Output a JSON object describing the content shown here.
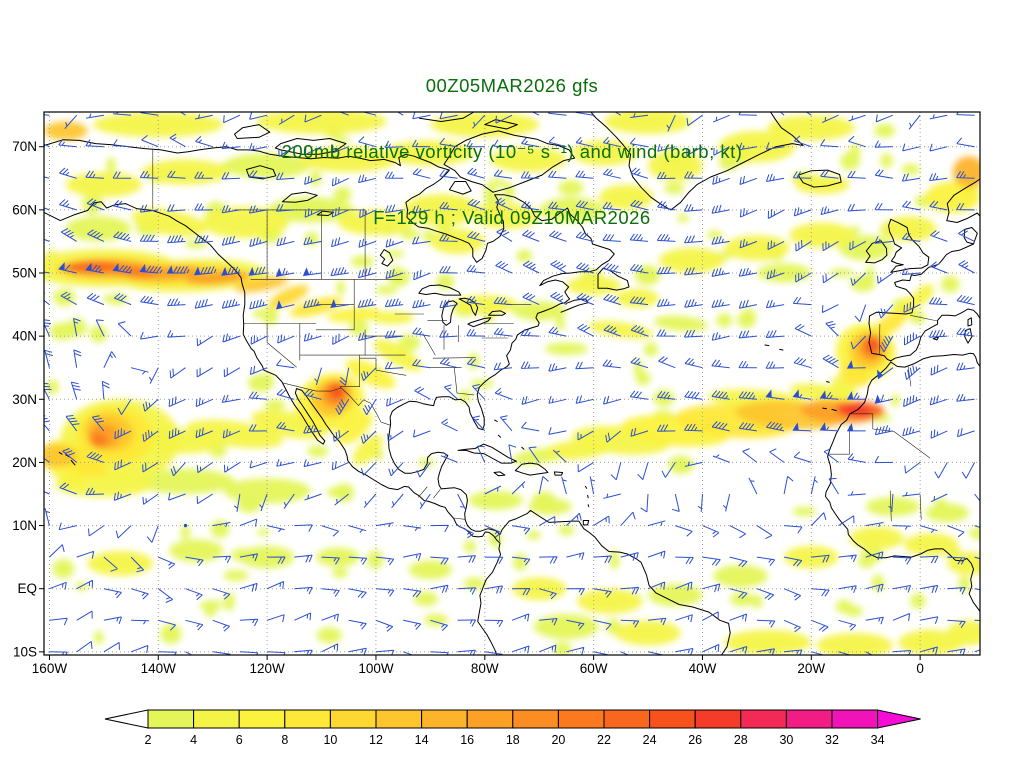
{
  "title": {
    "line1": "00Z05MAR2026 gfs",
    "line2": "200mb relative vorticity (10⁻⁵ s⁻¹) and wind (barb; kt)",
    "line3": "F=129 h ; Valid 09Z10MAR2026",
    "color": "#0a6e0a"
  },
  "chart_data": {
    "type": "heatmap",
    "subtype": "weather-map-vorticity-and-wind-barbs",
    "model": "gfs",
    "init_time": "00Z05MAR2026",
    "forecast_hour": "F=129 h",
    "valid_time": "09Z10MAR2026",
    "level": "200mb",
    "units": {
      "vorticity": "10⁻⁵ s⁻¹",
      "wind": "kt"
    },
    "lon_range": [
      -161,
      11
    ],
    "lat_range": [
      -10.5,
      75.5
    ],
    "x_ticks": [
      {
        "value": -160,
        "label": "160W"
      },
      {
        "value": -140,
        "label": "140W"
      },
      {
        "value": -120,
        "label": "120W"
      },
      {
        "value": -100,
        "label": "100W"
      },
      {
        "value": -80,
        "label": "80W"
      },
      {
        "value": -60,
        "label": "60W"
      },
      {
        "value": -40,
        "label": "40W"
      },
      {
        "value": -20,
        "label": "20W"
      },
      {
        "value": 0,
        "label": "0"
      }
    ],
    "y_ticks": [
      {
        "value": 70,
        "label": "70N"
      },
      {
        "value": 60,
        "label": "60N"
      },
      {
        "value": 50,
        "label": "50N"
      },
      {
        "value": 40,
        "label": "40N"
      },
      {
        "value": 30,
        "label": "30N"
      },
      {
        "value": 20,
        "label": "20N"
      },
      {
        "value": 10,
        "label": "10N"
      },
      {
        "value": 0,
        "label": "EQ"
      },
      {
        "value": -10,
        "label": "10S"
      }
    ],
    "grid_lons": [
      -160,
      -140,
      -120,
      -100,
      -80,
      -60,
      -40,
      -20,
      0
    ],
    "grid_lats": [
      70,
      60,
      50,
      40,
      30,
      20,
      10,
      0,
      -10
    ],
    "grid_on": true,
    "gridline_color": "#a0a0a0",
    "coast_color": "#000000",
    "barb_color": "#2b4fd0",
    "barb_grid_deg": 5,
    "colorbar": {
      "ticks": [
        2,
        4,
        6,
        8,
        10,
        12,
        14,
        16,
        18,
        20,
        22,
        24,
        26,
        28,
        30,
        32,
        34
      ],
      "segment_colors": [
        "#e4f55a",
        "#f4f448",
        "#fbf23e",
        "#fee838",
        "#fed832",
        "#fdc62e",
        "#fdb32a",
        "#fda026",
        "#fc8d23",
        "#fb7a20",
        "#f9661e",
        "#f7511c",
        "#f53c2a",
        "#f32a55",
        "#f11d85",
        "#f014b8"
      ],
      "under_color": "#ffffff",
      "over_color": "#f50cd6"
    },
    "flow": {
      "base_westerly": 8,
      "meander_amp": 13,
      "jets": [
        {
          "u": 85,
          "lat": 50,
          "latw": 4.5,
          "lon": -136,
          "lonw": 26
        },
        {
          "u": 30,
          "lat": 44,
          "latw": 5,
          "lon": -106,
          "lonw": 16
        },
        {
          "u": 22,
          "lat": 48,
          "latw": 9,
          "lon": -50,
          "lonw": 35
        },
        {
          "u": 50,
          "lat": 27.5,
          "latw": 4.2,
          "lon": -22,
          "lonw": 28
        },
        {
          "u": 28,
          "lat": 27,
          "latw": 5,
          "lon": -140,
          "lonw": 20
        },
        {
          "u": 18,
          "lat": 62,
          "latw": 10
        },
        {
          "u": 12,
          "lat": 38,
          "latw": 12
        },
        {
          "u": -20,
          "lat": 4,
          "latw": 8
        },
        {
          "u": -12,
          "lat": -9,
          "latw": 7
        },
        {
          "u": 25,
          "lat": 42,
          "latw": 6,
          "lon": 5,
          "lonw": 14
        }
      ],
      "vortices": [
        {
          "lon": -148.5,
          "lat": 24.5,
          "s": 28,
          "r": 6.5
        },
        {
          "lon": -9.5,
          "lat": 38,
          "s": 30,
          "r": 4.5
        },
        {
          "lon": -108,
          "lat": 30.5,
          "s": 22,
          "r": 4
        }
      ]
    },
    "noise": {
      "count": 150,
      "value": 2
    },
    "vorticity_patches": [
      [
        -150,
        50.8,
        14,
        3,
        0,
        5
      ],
      [
        -134,
        49.6,
        14,
        2.6,
        -2,
        5
      ],
      [
        -148,
        50.6,
        11,
        1.8,
        0,
        10
      ],
      [
        -136,
        49.8,
        10,
        1.6,
        -3,
        10
      ],
      [
        -150,
        50.8,
        8,
        1.3,
        0,
        16
      ],
      [
        -139,
        50,
        7,
        1.1,
        -3,
        16
      ],
      [
        -152,
        51,
        5,
        0.9,
        0,
        22
      ],
      [
        -144,
        50.2,
        4,
        0.8,
        -2,
        20
      ],
      [
        -129,
        49.2,
        6,
        1,
        -5,
        16
      ],
      [
        -121,
        48.2,
        5,
        1,
        -10,
        12
      ],
      [
        -116,
        46.3,
        4,
        1.2,
        -25,
        10
      ],
      [
        -111,
        44.6,
        5,
        1.2,
        -15,
        9
      ],
      [
        -104,
        43.4,
        5,
        1.1,
        -6,
        7
      ],
      [
        -97,
        42.9,
        4,
        1,
        0,
        4
      ],
      [
        -151,
        57,
        6,
        2,
        0,
        3
      ],
      [
        -138,
        58,
        7,
        2,
        10,
        4
      ],
      [
        -124,
        58,
        8,
        2.5,
        0,
        4
      ],
      [
        -112,
        60,
        8,
        2,
        0,
        3
      ],
      [
        -100,
        58,
        7,
        2,
        0,
        4
      ],
      [
        -88,
        60,
        7,
        2.5,
        0,
        4
      ],
      [
        -76,
        59,
        6,
        2,
        0,
        4
      ],
      [
        -64,
        60,
        6,
        2,
        0,
        3
      ],
      [
        -54,
        62,
        5,
        2,
        0,
        4
      ],
      [
        -150,
        64,
        7,
        2,
        0,
        4
      ],
      [
        -135,
        66,
        8,
        2,
        0,
        4
      ],
      [
        -120,
        67,
        8,
        2,
        0,
        3
      ],
      [
        -105,
        68,
        9,
        2,
        0,
        4
      ],
      [
        -90,
        69,
        8,
        2,
        0,
        4
      ],
      [
        -72,
        68,
        7,
        2,
        0,
        4
      ],
      [
        -58,
        69,
        6,
        2,
        0,
        4
      ],
      [
        -45,
        67,
        5,
        2.5,
        0,
        4
      ],
      [
        -30,
        70,
        7,
        2.5,
        0,
        4
      ],
      [
        -140,
        73.5,
        12,
        2,
        0,
        4
      ],
      [
        -110,
        74,
        12,
        2,
        0,
        4
      ],
      [
        -80,
        73.5,
        10,
        2,
        0,
        4
      ],
      [
        -50,
        74,
        8,
        2,
        0,
        4
      ],
      [
        -20,
        73,
        8,
        2,
        0,
        4
      ],
      [
        -157,
        72.5,
        4,
        1.5,
        0,
        13
      ],
      [
        -85,
        55,
        5,
        2,
        0,
        4
      ],
      [
        -80,
        45,
        6,
        1.5,
        0,
        4
      ],
      [
        -70,
        44,
        5,
        1.5,
        0,
        3
      ],
      [
        -60,
        48,
        5,
        1.5,
        0,
        4
      ],
      [
        -52,
        46,
        4,
        1.5,
        0,
        5
      ],
      [
        -42,
        52,
        6,
        2,
        0,
        4
      ],
      [
        -30,
        54,
        6,
        2,
        0,
        4
      ],
      [
        -18,
        56,
        6,
        2,
        0,
        4
      ],
      [
        -25,
        50,
        5,
        1.5,
        0,
        3
      ],
      [
        -10,
        54,
        5,
        2,
        0,
        3
      ],
      [
        -18,
        64,
        5,
        1.5,
        0,
        4
      ],
      [
        -2,
        57,
        5,
        2,
        0,
        4
      ],
      [
        6,
        62,
        5,
        2.5,
        0,
        6
      ],
      [
        9,
        66,
        3,
        2.5,
        0,
        14
      ],
      [
        -55,
        41,
        6,
        1.2,
        8,
        4
      ],
      [
        -44,
        42,
        5,
        1.2,
        5,
        3
      ],
      [
        -65,
        38,
        4,
        1,
        0,
        3
      ],
      [
        -10,
        37.5,
        5.5,
        4.5,
        15,
        6
      ],
      [
        -9.5,
        37.8,
        3.5,
        3,
        15,
        12
      ],
      [
        -9,
        38.2,
        2.2,
        2,
        15,
        18
      ],
      [
        -8.8,
        38.5,
        1.2,
        1.2,
        0,
        24
      ],
      [
        -5.5,
        42,
        3.5,
        1.4,
        -35,
        8
      ],
      [
        -2.5,
        44.5,
        3,
        1.2,
        -40,
        6
      ],
      [
        0.5,
        46.5,
        2.5,
        1.2,
        -45,
        4
      ],
      [
        -12,
        34,
        3,
        1.8,
        30,
        8
      ],
      [
        -14,
        32,
        2.5,
        1.5,
        40,
        5
      ],
      [
        -55,
        23.5,
        9,
        2.2,
        5,
        5
      ],
      [
        -45,
        25,
        10,
        2.4,
        5,
        6
      ],
      [
        -34,
        26.5,
        11,
        2.6,
        4,
        8
      ],
      [
        -24,
        27.5,
        10,
        2.2,
        4,
        12
      ],
      [
        -15,
        28,
        7,
        1.8,
        4,
        16
      ],
      [
        -11,
        28.3,
        4.5,
        1.4,
        4,
        22
      ],
      [
        -12,
        28.2,
        3,
        1,
        4,
        26
      ],
      [
        -30,
        30,
        9,
        1.5,
        4,
        4
      ],
      [
        -18,
        31,
        6,
        1.3,
        8,
        4
      ],
      [
        -63,
        22,
        6,
        1.5,
        -5,
        4
      ],
      [
        -70,
        21,
        5,
        1.2,
        -8,
        3
      ],
      [
        -108.5,
        29.5,
        6.5,
        4.5,
        -20,
        6
      ],
      [
        -108,
        30.2,
        4,
        3,
        -20,
        12
      ],
      [
        -107.5,
        30.8,
        2.5,
        2,
        -25,
        18
      ],
      [
        -107.2,
        31.2,
        1.4,
        1.2,
        -25,
        24
      ],
      [
        -104,
        25.5,
        4,
        1.8,
        -40,
        6
      ],
      [
        -101.5,
        22,
        3.5,
        1.5,
        -45,
        5
      ],
      [
        -101,
        34,
        5,
        1.6,
        25,
        6
      ],
      [
        -96,
        37,
        5,
        1.5,
        30,
        4
      ],
      [
        -147,
        23.5,
        11,
        6.5,
        0,
        5
      ],
      [
        -148,
        24.3,
        7,
        4.5,
        5,
        8
      ],
      [
        -149,
        24.8,
        4.5,
        3,
        10,
        13
      ],
      [
        -150,
        24.3,
        2.8,
        2,
        0,
        17
      ],
      [
        -151,
        23.5,
        1.6,
        1.2,
        0,
        21
      ],
      [
        -155,
        20.5,
        6,
        2,
        25,
        8
      ],
      [
        -157,
        18.5,
        4,
        1.5,
        30,
        6
      ],
      [
        -159,
        21,
        4,
        1.8,
        0,
        12
      ],
      [
        -138,
        23.5,
        9,
        2,
        5,
        5
      ],
      [
        -126,
        24.5,
        9,
        2,
        8,
        5
      ],
      [
        -116,
        26,
        7,
        2,
        12,
        5
      ],
      [
        -150,
        16.5,
        9,
        2,
        0,
        4
      ],
      [
        -135,
        17,
        9,
        2,
        0,
        3
      ],
      [
        -120,
        15.5,
        8,
        2,
        0,
        3
      ],
      [
        -147,
        4,
        6,
        2,
        0,
        4
      ],
      [
        -133,
        6,
        5,
        1.8,
        0,
        3
      ],
      [
        -120,
        5,
        5,
        1.8,
        0,
        3
      ],
      [
        -107,
        5,
        4,
        1.5,
        0,
        3
      ],
      [
        -90,
        3,
        4,
        1.5,
        0,
        3
      ],
      [
        -70,
        0,
        5,
        1.8,
        0,
        4
      ],
      [
        -57,
        -2,
        6,
        2,
        0,
        4
      ],
      [
        -45,
        -1,
        5,
        1.8,
        0,
        3
      ],
      [
        -33,
        2,
        5,
        1.8,
        0,
        3
      ],
      [
        -20,
        5,
        5,
        1.8,
        0,
        4
      ],
      [
        -8,
        8,
        5,
        1.8,
        0,
        4
      ],
      [
        2,
        7,
        5,
        1.8,
        0,
        4
      ],
      [
        9,
        4,
        4,
        1.8,
        0,
        4
      ],
      [
        -28,
        -8.5,
        8,
        2,
        0,
        4
      ],
      [
        -12,
        -9,
        7,
        2,
        0,
        4
      ],
      [
        2,
        -8.5,
        6,
        2,
        0,
        4
      ],
      [
        9,
        -7,
        4,
        2,
        0,
        5
      ],
      [
        -65,
        -6,
        6,
        2,
        0,
        3
      ],
      [
        -50,
        -7,
        6,
        2,
        0,
        4
      ],
      [
        -78,
        14,
        5,
        1.5,
        0,
        3
      ],
      [
        -68,
        13,
        4,
        1.3,
        0,
        3
      ],
      [
        -5,
        13,
        5,
        1.5,
        0,
        3
      ],
      [
        5,
        12,
        4,
        1.5,
        0,
        3
      ]
    ]
  }
}
